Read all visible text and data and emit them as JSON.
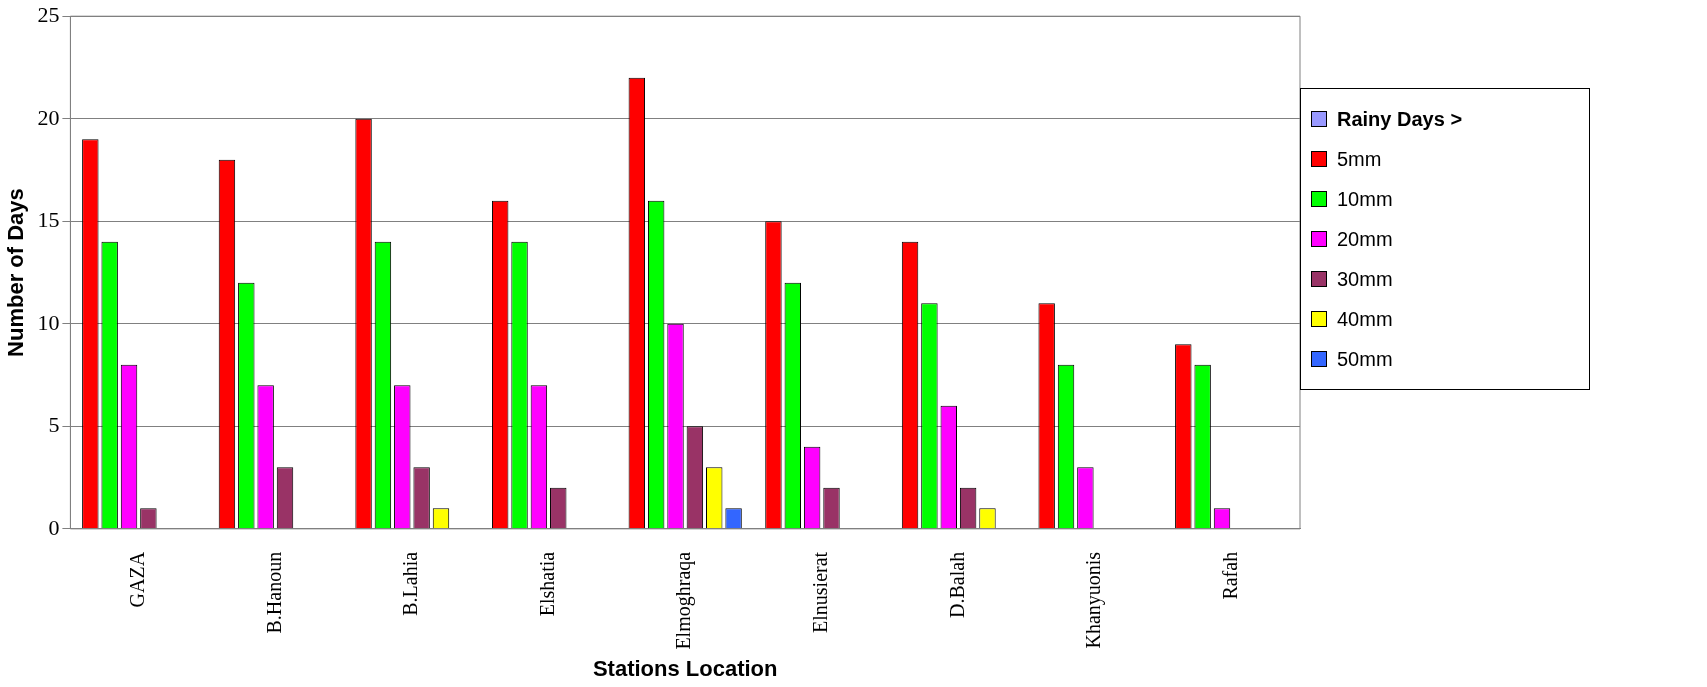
{
  "chart_data": {
    "type": "bar",
    "xlabel": "Stations Location",
    "ylabel": "Number of Days",
    "legend_title": "Rainy Days >",
    "categories": [
      "GAZA",
      "B.Hanoun",
      "B.Lahia",
      "Elshatia",
      "Elmoghraqa",
      "Elnusierat",
      "D.Balah",
      "Khanyuonis",
      "Rafah"
    ],
    "series": [
      {
        "name": "5mm",
        "color": "#ff0000",
        "values": [
          19,
          18,
          20,
          16,
          22,
          15,
          14,
          11,
          9
        ]
      },
      {
        "name": "10mm",
        "color": "#00ff00",
        "values": [
          14,
          12,
          14,
          14,
          16,
          12,
          11,
          8,
          8
        ]
      },
      {
        "name": "20mm",
        "color": "#ff00ff",
        "values": [
          8,
          7,
          7,
          7,
          10,
          4,
          6,
          3,
          1
        ]
      },
      {
        "name": "30mm",
        "color": "#993366",
        "values": [
          1,
          3,
          3,
          2,
          5,
          2,
          2,
          0,
          0
        ]
      },
      {
        "name": "40mm",
        "color": "#ffff00",
        "values": [
          0,
          0,
          1,
          0,
          3,
          0,
          1,
          0,
          0
        ]
      },
      {
        "name": "50mm",
        "color": "#3366ff",
        "values": [
          0,
          0,
          0,
          0,
          1,
          0,
          0,
          0,
          0
        ]
      }
    ],
    "ylim": [
      0,
      25
    ],
    "yticks": [
      0,
      5,
      10,
      15,
      20,
      25
    ],
    "grid": "y",
    "legend": "right"
  }
}
